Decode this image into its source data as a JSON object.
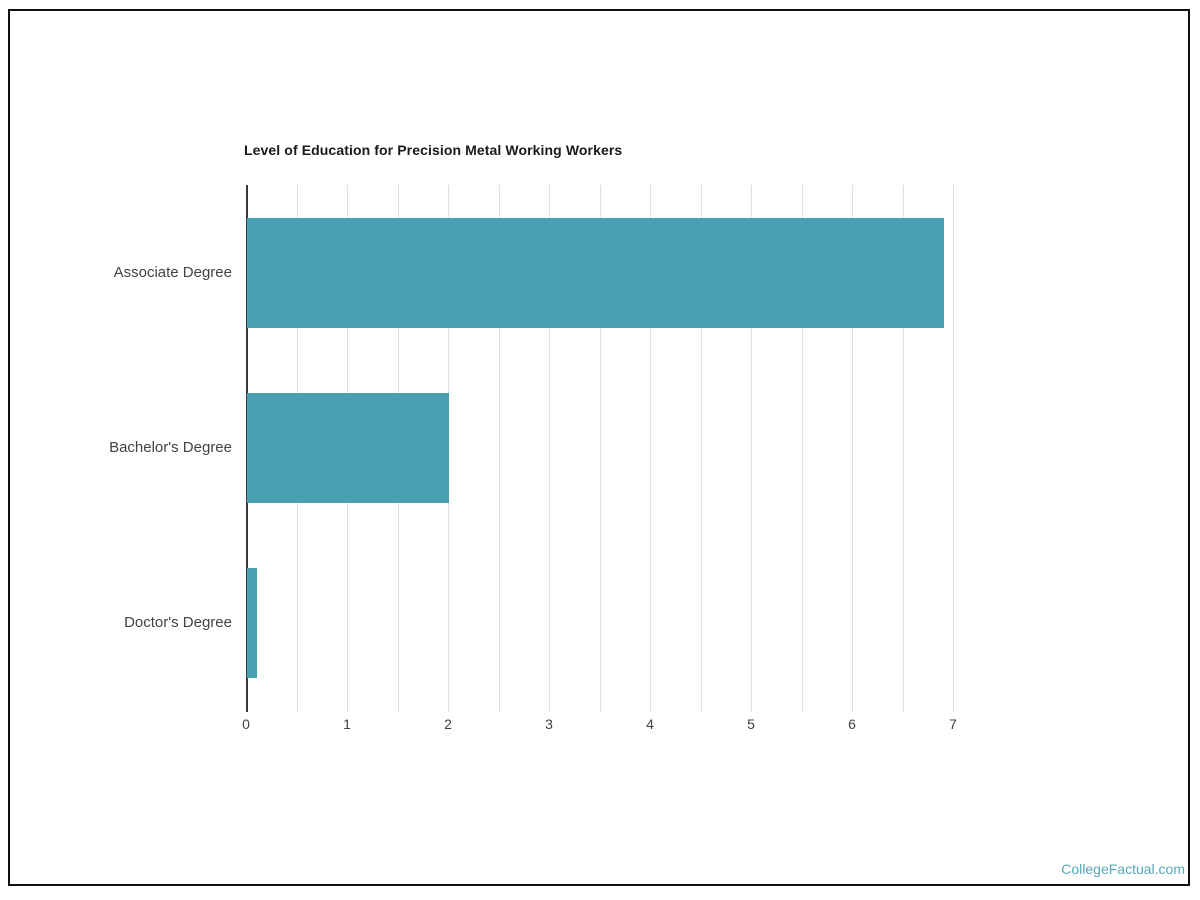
{
  "page": {
    "border_color": "#111111",
    "background": "#ffffff"
  },
  "watermark": {
    "text": "CollegeFactual.com",
    "color": "#55a9bb"
  },
  "chart_data": {
    "type": "bar",
    "orientation": "horizontal",
    "title": "Level of Education for Precision Metal Working Workers",
    "categories": [
      "Associate Degree",
      "Bachelor's Degree",
      "Doctor's Degree"
    ],
    "values": [
      6.9,
      2,
      0.1
    ],
    "xlabel": "",
    "ylabel": "",
    "xlim": [
      0,
      7
    ],
    "x_tick_labels": [
      "0",
      "1",
      "2",
      "3",
      "4",
      "5",
      "6",
      "7"
    ],
    "gridline_interval": 0.5,
    "grid": true,
    "legend": false,
    "bar_color": "#49a0b2",
    "gridline_color": "#e0e0e0",
    "axis_color": "#3a3a3a",
    "tick_label_color": "#424242",
    "category_label_color": "#424242",
    "title_color": "#1a1a1a"
  }
}
